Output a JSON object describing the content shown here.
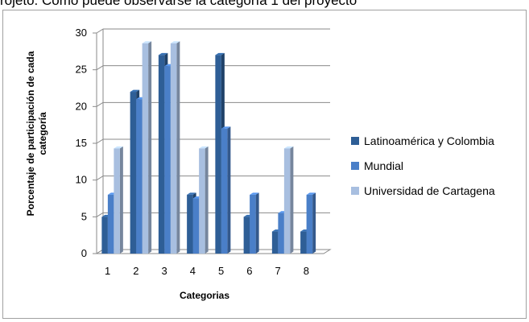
{
  "caption": "rojeto. Como puede observarse la categoría 1 del proyecto",
  "chart_data": {
    "type": "bar",
    "subtype": "3d-clustered-column",
    "categories": [
      "1",
      "2",
      "3",
      "4",
      "5",
      "6",
      "7",
      "8"
    ],
    "series": [
      {
        "name": "Latinoamérica y Colombia",
        "color": "#2e5e96",
        "values": [
          5,
          22,
          27,
          8,
          27,
          5,
          3,
          3
        ]
      },
      {
        "name": "Mundial",
        "color": "#4a7fc8",
        "values": [
          8,
          21,
          25.5,
          7.5,
          17,
          8,
          5.5,
          8
        ]
      },
      {
        "name": "Universidad de Cartagena",
        "color": "#a8bfe0",
        "values": [
          14.3,
          28.6,
          28.6,
          14.3,
          0,
          0,
          14.3,
          0
        ]
      }
    ],
    "xlabel": "Categorias",
    "ylabel": "Porcentaje de participación de cada categoría",
    "ylim": [
      0,
      30
    ],
    "yticks": [
      "0",
      "5",
      "10",
      "15",
      "20",
      "25",
      "30"
    ],
    "grid": true,
    "legend_position": "right"
  }
}
